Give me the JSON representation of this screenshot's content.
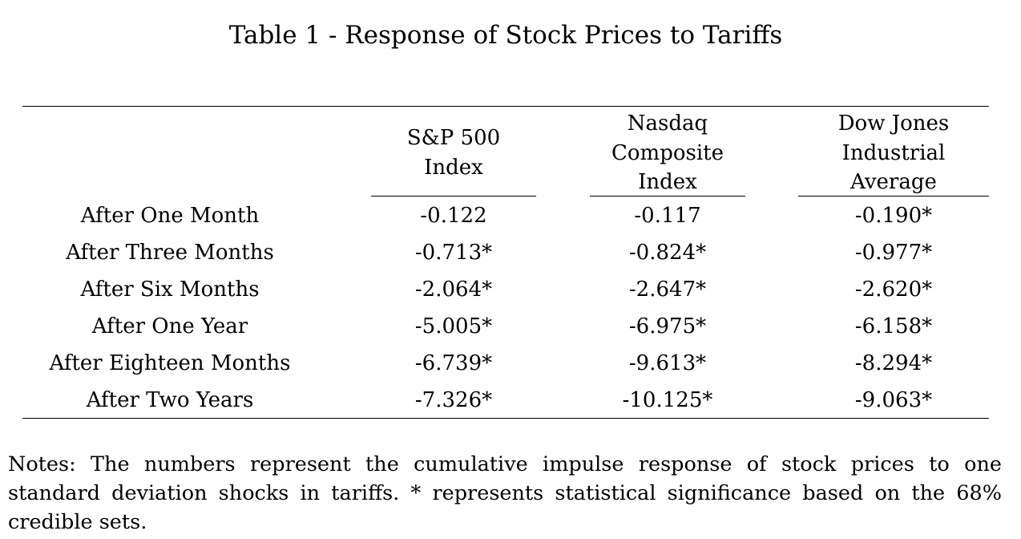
{
  "title": "Table 1 - Response of Stock Prices to Tariffs",
  "columns": [
    {
      "lines": [
        "S&P 500",
        "Index"
      ]
    },
    {
      "lines": [
        "Nasdaq",
        "Composite",
        "Index"
      ]
    },
    {
      "lines": [
        "Dow Jones",
        "Industrial",
        "Average"
      ]
    }
  ],
  "rows": [
    {
      "label": "After One Month",
      "values": [
        "-0.122",
        "-0.117",
        "-0.190*"
      ]
    },
    {
      "label": "After Three Months",
      "values": [
        "-0.713*",
        "-0.824*",
        "-0.977*"
      ]
    },
    {
      "label": "After Six Months",
      "values": [
        "-2.064*",
        "-2.647*",
        "-2.620*"
      ]
    },
    {
      "label": "After One Year",
      "values": [
        "-5.005*",
        "-6.975*",
        "-6.158*"
      ]
    },
    {
      "label": "After Eighteen Months",
      "values": [
        "-6.739*",
        "-9.613*",
        "-8.294*"
      ]
    },
    {
      "label": "After Two Years",
      "values": [
        "-7.326*",
        "-10.125*",
        "-9.063*"
      ]
    }
  ],
  "notes": "Notes: The numbers represent the cumulative impulse response of stock prices to one standard deviation shocks in tariffs. * represents statistical significance based on the 68% credible sets."
}
